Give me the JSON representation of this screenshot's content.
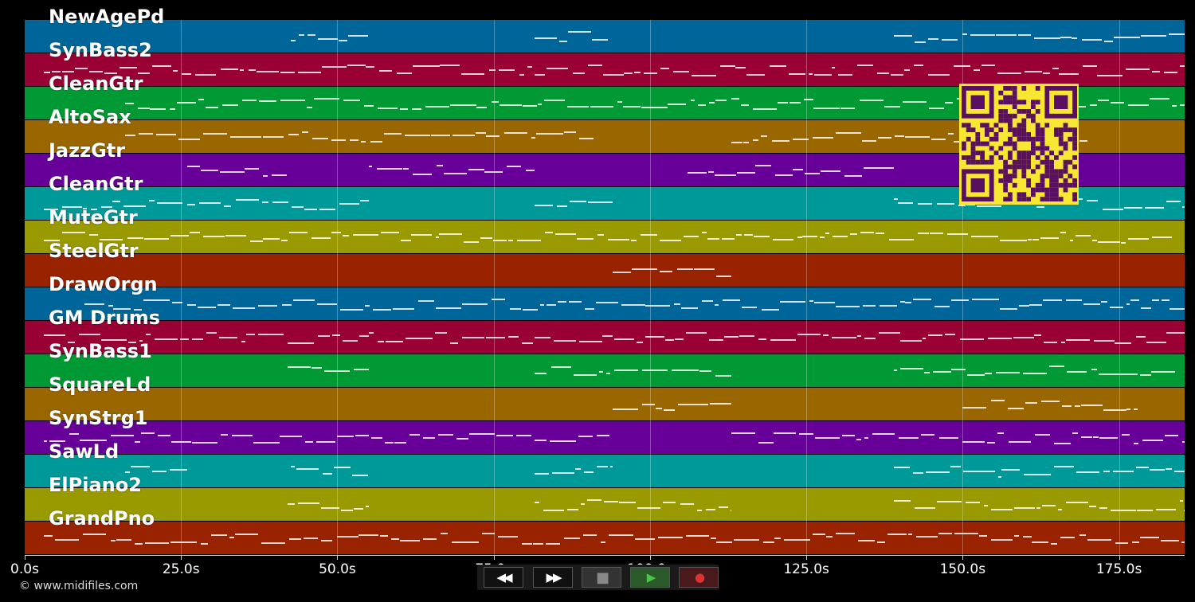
{
  "tracks": [
    {
      "name": "NewAgePd",
      "color": "#006699"
    },
    {
      "name": "SynBass2",
      "color": "#990033"
    },
    {
      "name": "CleanGtr",
      "color": "#009933"
    },
    {
      "name": "AltoSax",
      "color": "#996600"
    },
    {
      "name": "JazzGtr",
      "color": "#660099"
    },
    {
      "name": "CleanGtr",
      "color": "#009999"
    },
    {
      "name": "MuteGtr",
      "color": "#999900"
    },
    {
      "name": "SteelGtr",
      "color": "#992200"
    },
    {
      "name": "DrawOrgn",
      "color": "#006699"
    },
    {
      "name": "GM Drums",
      "color": "#990033"
    },
    {
      "name": "SynBass1",
      "color": "#009933"
    },
    {
      "name": "SquareLd",
      "color": "#996600"
    },
    {
      "name": "SynStrg1",
      "color": "#660099"
    },
    {
      "name": "SawLd",
      "color": "#009999"
    },
    {
      "name": "ElPiano2",
      "color": "#999900"
    },
    {
      "name": "GrandPno",
      "color": "#992200"
    }
  ],
  "axis": {
    "max_seconds": 185.5,
    "ticks": [
      {
        "t": 0,
        "label": "0.0s"
      },
      {
        "t": 25,
        "label": "25.0s"
      },
      {
        "t": 50,
        "label": "50.0s"
      },
      {
        "t": 75,
        "label": "75.0s"
      },
      {
        "t": 100,
        "label": "100.0s"
      },
      {
        "t": 125,
        "label": "125.0s"
      },
      {
        "t": 150,
        "label": "150.0s"
      },
      {
        "t": 175,
        "label": "175.0s"
      }
    ]
  },
  "note_activity": [
    [
      [
        42.5,
        55
      ],
      [
        81.5,
        94
      ],
      [
        139,
        185.5
      ]
    ],
    [
      [
        3,
        185.5
      ]
    ],
    [
      [
        16,
        185.5
      ]
    ],
    [
      [
        16,
        91
      ],
      [
        113,
        170
      ]
    ],
    [
      [
        26,
        42
      ],
      [
        55,
        81.5
      ],
      [
        106,
        139
      ]
    ],
    [
      [
        3,
        55
      ],
      [
        81.5,
        94
      ],
      [
        139,
        185.5
      ]
    ],
    [
      [
        3,
        183.5
      ]
    ],
    [
      [
        94,
        113
      ]
    ],
    [
      [
        9.5,
        185.5
      ]
    ],
    [
      [
        3,
        185.5
      ]
    ],
    [
      [
        42,
        55
      ],
      [
        81.5,
        113
      ],
      [
        139,
        184
      ]
    ],
    [
      [
        94,
        113
      ],
      [
        150,
        178
      ]
    ],
    [
      [
        3,
        94
      ],
      [
        113,
        185.5
      ]
    ],
    [
      [
        16,
        26
      ],
      [
        42.5,
        55
      ],
      [
        81.5,
        94
      ],
      [
        139,
        185.5
      ]
    ],
    [
      [
        42,
        55
      ],
      [
        81.5,
        113
      ],
      [
        139,
        185.5
      ]
    ],
    [
      [
        3,
        185.5
      ]
    ]
  ],
  "footer": {
    "copyright": "© www.midifiles.com"
  },
  "transport": {
    "buttons": [
      {
        "name": "rewind-button",
        "icon": "rewind-icon",
        "glyph": "◀◀",
        "bg": "#111111",
        "fg": "#ffffff"
      },
      {
        "name": "fast-forward-button",
        "icon": "fast-forward-icon",
        "glyph": "▶▶",
        "bg": "#111111",
        "fg": "#ffffff"
      },
      {
        "name": "stop-button",
        "icon": "stop-icon",
        "glyph": "■",
        "bg": "#333333",
        "fg": "#888888"
      },
      {
        "name": "play-button",
        "icon": "play-icon",
        "glyph": "▶",
        "bg": "#2a5a2a",
        "fg": "#4cc24c"
      },
      {
        "name": "record-button",
        "icon": "record-icon",
        "glyph": "●",
        "bg": "#4a1a1a",
        "fg": "#dd3333"
      }
    ]
  },
  "qr_colors": {
    "dark": "#5a1060",
    "light": "#f7e733"
  }
}
